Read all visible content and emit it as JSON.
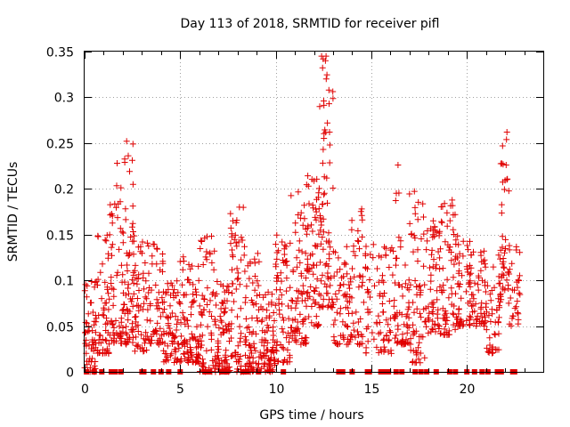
{
  "chart_data": {
    "type": "scatter",
    "title": "Day 113 of 2018, SRMTID for receiver pifl",
    "xlabel": "GPS time / hours",
    "ylabel": "SRMTID / TECUs",
    "xlim": [
      0,
      24
    ],
    "ylim": [
      0,
      0.35
    ],
    "x_ticks": [
      0,
      5,
      10,
      15,
      20
    ],
    "y_ticks": [
      0,
      0.05,
      0.1,
      0.15,
      0.2,
      0.25,
      0.3,
      0.35
    ],
    "x_tick_labels": [
      "0",
      "5",
      "10",
      "15",
      "20"
    ],
    "y_tick_labels": [
      "0",
      "0.05",
      "0.1",
      "0.15",
      "0.2",
      "0.25",
      "0.3",
      "0.35"
    ],
    "grid": true,
    "marker": "+",
    "series_color": "#e00000",
    "series": [
      {
        "name": "SRMTID",
        "clusters": [
          {
            "x": [
              0.0,
              0.6
            ],
            "y": [
              0.0,
              0.1
            ],
            "n": 55
          },
          {
            "x": [
              0.6,
              1.3
            ],
            "y": [
              0.02,
              0.16
            ],
            "n": 55
          },
          {
            "x": [
              1.3,
              2.0
            ],
            "y": [
              0.03,
              0.21
            ],
            "n": 60
          },
          {
            "x": [
              2.0,
              2.6
            ],
            "y": [
              0.03,
              0.25
            ],
            "n": 70
          },
          {
            "x": [
              2.6,
              3.3
            ],
            "y": [
              0.02,
              0.15
            ],
            "n": 50
          },
          {
            "x": [
              3.3,
              4.1
            ],
            "y": [
              0.03,
              0.14
            ],
            "n": 55
          },
          {
            "x": [
              4.1,
              5.0
            ],
            "y": [
              0.01,
              0.1
            ],
            "n": 70
          },
          {
            "x": [
              5.0,
              6.0
            ],
            "y": [
              0.01,
              0.13
            ],
            "n": 85
          },
          {
            "x": [
              6.0,
              6.8
            ],
            "y": [
              0.0,
              0.15
            ],
            "n": 65
          },
          {
            "x": [
              6.8,
              7.6
            ],
            "y": [
              0.0,
              0.1
            ],
            "n": 80
          },
          {
            "x": [
              7.6,
              8.4
            ],
            "y": [
              0.0,
              0.18
            ],
            "n": 65
          },
          {
            "x": [
              8.4,
              9.2
            ],
            "y": [
              0.0,
              0.13
            ],
            "n": 70
          },
          {
            "x": [
              9.2,
              10.0
            ],
            "y": [
              0.0,
              0.09
            ],
            "n": 80
          },
          {
            "x": [
              10.0,
              10.8
            ],
            "y": [
              0.01,
              0.15
            ],
            "n": 65
          },
          {
            "x": [
              10.8,
              11.6
            ],
            "y": [
              0.03,
              0.2
            ],
            "n": 70
          },
          {
            "x": [
              11.6,
              12.3
            ],
            "y": [
              0.05,
              0.22
            ],
            "n": 70
          },
          {
            "x": [
              12.3,
              13.0
            ],
            "y": [
              0.07,
              0.35
            ],
            "n": 75
          },
          {
            "x": [
              13.0,
              13.8
            ],
            "y": [
              0.03,
              0.15
            ],
            "n": 50
          },
          {
            "x": [
              13.8,
              14.6
            ],
            "y": [
              0.03,
              0.18
            ],
            "n": 50
          },
          {
            "x": [
              14.6,
              15.4
            ],
            "y": [
              0.02,
              0.14
            ],
            "n": 35
          },
          {
            "x": [
              15.4,
              16.2
            ],
            "y": [
              0.02,
              0.14
            ],
            "n": 45
          },
          {
            "x": [
              16.2,
              17.0
            ],
            "y": [
              0.03,
              0.2
            ],
            "n": 60
          },
          {
            "x": [
              17.0,
              17.8
            ],
            "y": [
              0.01,
              0.2
            ],
            "n": 60
          },
          {
            "x": [
              17.8,
              18.6
            ],
            "y": [
              0.04,
              0.17
            ],
            "n": 60
          },
          {
            "x": [
              18.6,
              19.4
            ],
            "y": [
              0.04,
              0.19
            ],
            "n": 60
          },
          {
            "x": [
              19.4,
              20.2
            ],
            "y": [
              0.05,
              0.15
            ],
            "n": 60
          },
          {
            "x": [
              20.2,
              21.0
            ],
            "y": [
              0.05,
              0.14
            ],
            "n": 55
          },
          {
            "x": [
              21.0,
              21.7
            ],
            "y": [
              0.02,
              0.13
            ],
            "n": 40
          },
          {
            "x": [
              21.7,
              22.2
            ],
            "y": [
              0.07,
              0.26
            ],
            "n": 45
          },
          {
            "x": [
              22.2,
              22.8
            ],
            "y": [
              0.05,
              0.15
            ],
            "n": 30
          }
        ],
        "outliers": [
          {
            "x": 12.4,
            "y": 0.345
          },
          {
            "x": 12.6,
            "y": 0.34
          },
          {
            "x": 22.1,
            "y": 0.262
          },
          {
            "x": 2.2,
            "y": 0.252
          },
          {
            "x": 1.7,
            "y": 0.228
          },
          {
            "x": 16.4,
            "y": 0.226
          },
          {
            "x": 8.1,
            "y": 0.18
          },
          {
            "x": 14.5,
            "y": 0.178
          }
        ]
      }
    ],
    "baseline_flags_x": [
      0.1,
      0.5,
      0.9,
      1.4,
      1.6,
      1.9,
      3.0,
      3.1,
      3.6,
      4.0,
      4.4,
      5.0,
      6.3,
      6.5,
      7.2,
      7.4,
      8.3,
      8.5,
      9.1,
      10.4,
      13.3,
      13.5,
      14.0,
      14.8,
      14.9,
      15.5,
      15.7,
      15.9,
      16.3,
      16.6,
      17.3,
      17.6,
      17.9,
      18.4,
      19.1,
      19.4,
      20.0,
      20.4,
      20.8,
      21.1,
      21.6,
      21.8,
      22.4,
      22.5
    ]
  }
}
